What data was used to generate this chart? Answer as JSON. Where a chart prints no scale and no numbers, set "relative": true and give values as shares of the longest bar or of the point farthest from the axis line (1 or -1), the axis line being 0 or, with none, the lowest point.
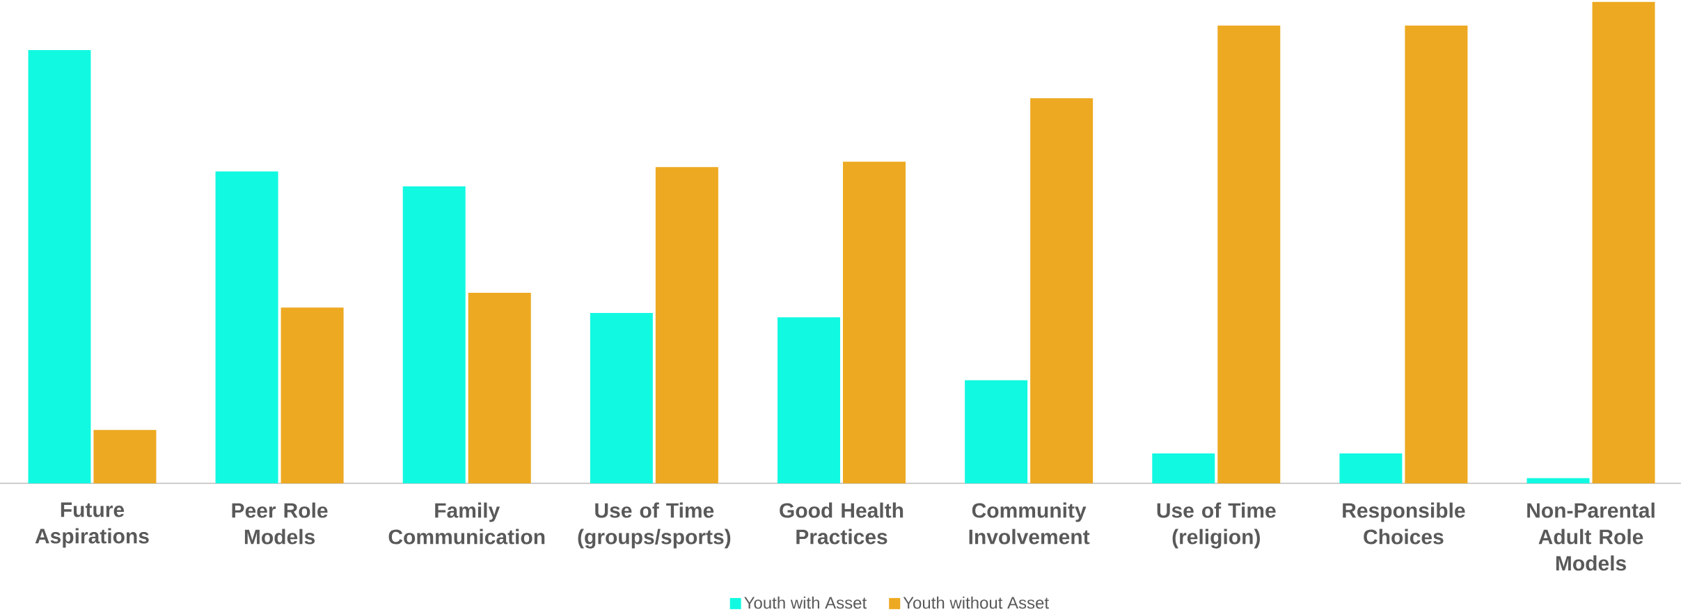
{
  "chart_data": {
    "type": "bar",
    "relative": true,
    "categories": [
      "Future Aspirations",
      "Peer Role Models",
      "Family Communication",
      "Use of Time (groups/sports)",
      "Good Health Practices",
      "Community Involvement",
      "Use of Time (religion)",
      "Responsible Choices",
      "Non-Parental Adult Role Models"
    ],
    "series": [
      {
        "name": "Youth with Asset",
        "color": "#12f9e1",
        "values": [
          0.9,
          0.648,
          0.617,
          0.354,
          0.345,
          0.214,
          0.062,
          0.062,
          0.011
        ]
      },
      {
        "name": "Youth without Asset",
        "color": "#eda921",
        "values": [
          0.111,
          0.365,
          0.396,
          0.657,
          0.668,
          0.8,
          0.951,
          0.951,
          1.0
        ]
      }
    ],
    "legend": "bottom"
  }
}
